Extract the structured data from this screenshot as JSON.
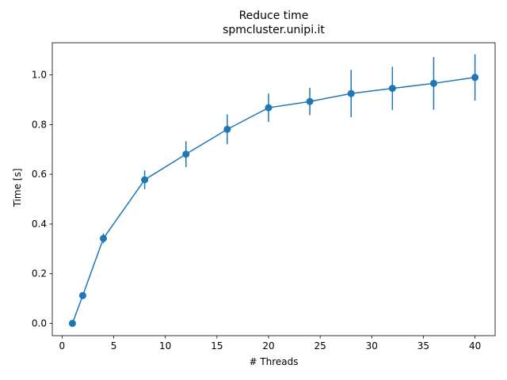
{
  "chart_data": {
    "type": "line",
    "title": "Reduce time",
    "subtitle": "spmcluster.unipi.it",
    "xlabel": "# Threads",
    "ylabel": "Time [s]",
    "x": [
      1,
      2,
      4,
      8,
      12,
      16,
      20,
      24,
      28,
      32,
      36,
      40
    ],
    "series": [
      {
        "values": [
          0.0,
          0.112,
          0.342,
          0.578,
          0.681,
          0.781,
          0.868,
          0.893,
          0.925,
          0.946,
          0.966,
          0.99
        ],
        "errors": [
          0.0,
          0.008,
          0.02,
          0.038,
          0.052,
          0.06,
          0.057,
          0.055,
          0.095,
          0.087,
          0.106,
          0.093
        ],
        "color": "#1f77b4",
        "marker": "circle"
      }
    ],
    "xlim": [
      -0.95,
      41.95
    ],
    "ylim": [
      -0.0495,
      1.1295
    ],
    "xticks": [
      0,
      5,
      10,
      15,
      20,
      25,
      30,
      35,
      40
    ],
    "yticks": [
      0.0,
      0.2,
      0.4,
      0.6,
      0.8,
      1.0
    ],
    "ytick_labels": [
      "0.0",
      "0.2",
      "0.4",
      "0.6",
      "0.8",
      "1.0"
    ],
    "grid": false,
    "legend": "none"
  }
}
